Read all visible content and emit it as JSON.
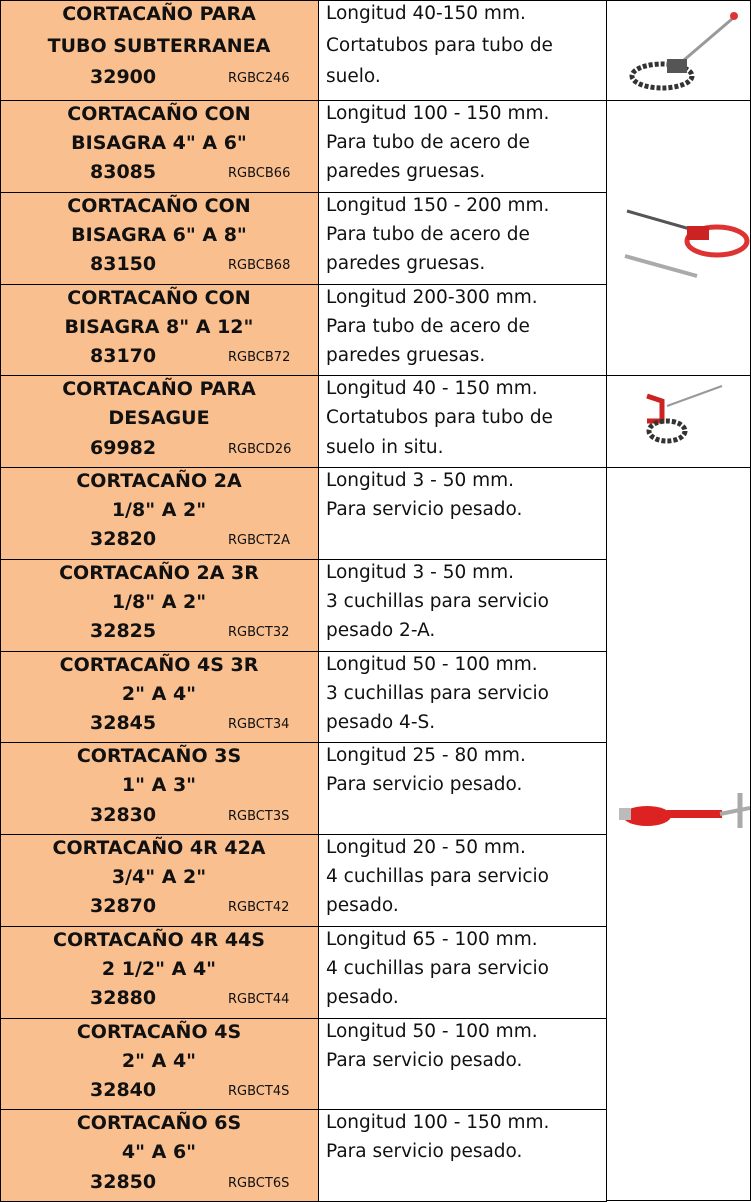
{
  "table": {
    "rows": [
      {
        "title": [
          "CORTACAÑO PARA",
          "TUBO SUBTERRANEA"
        ],
        "code": "32900",
        "ref": "RGBC246",
        "desc": [
          "Longitud 40-150 mm.",
          "Cortatubos para tubo de",
          "suelo."
        ]
      },
      {
        "title": [
          "CORTACAÑO CON",
          "BISAGRA 4\" A 6\""
        ],
        "code": "83085",
        "ref": "RGBCB66",
        "desc": [
          "Longitud 100 - 150 mm.",
          "Para tubo de acero de",
          "paredes gruesas."
        ]
      },
      {
        "title": [
          "CORTACAÑO CON",
          "BISAGRA 6\" A 8\""
        ],
        "code": "83150",
        "ref": "RGBCB68",
        "desc": [
          "Longitud 150 - 200 mm.",
          "Para tubo de acero de",
          "paredes gruesas."
        ]
      },
      {
        "title": [
          "CORTACAÑO CON",
          "BISAGRA 8\" A 12\""
        ],
        "code": "83170",
        "ref": "RGBCB72",
        "desc": [
          "Longitud 200-300 mm.",
          "Para tubo de acero de",
          "paredes gruesas."
        ]
      },
      {
        "title": [
          "CORTACAÑO PARA",
          "DESAGUE"
        ],
        "code": "69982",
        "ref": "RGBCD26",
        "desc": [
          "Longitud 40 - 150 mm.",
          "Cortatubos para tubo de",
          "suelo in situ."
        ]
      },
      {
        "title": [
          "CORTACAÑO 2A",
          "1/8\" A  2\""
        ],
        "code": "32820",
        "ref": "RGBCT2A",
        "desc": [
          "Longitud 3 - 50 mm.",
          "Para servicio pesado."
        ]
      },
      {
        "title": [
          "CORTACAÑO 2A 3R",
          "1/8\" A 2\""
        ],
        "code": "32825",
        "ref": "RGBCT32",
        "desc": [
          "Longitud 3 - 50 mm.",
          "3 cuchillas para servicio",
          "pesado 2-A."
        ]
      },
      {
        "title": [
          "CORTACAÑO 4S 3R",
          "2\" A 4\""
        ],
        "code": "32845",
        "ref": "RGBCT34",
        "desc": [
          "Longitud 50 - 100 mm.",
          "3 cuchillas para servicio",
          "pesado 4-S."
        ]
      },
      {
        "title": [
          "CORTACAÑO 3S",
          "1\" A 3\""
        ],
        "code": "32830",
        "ref": "RGBCT3S",
        "desc": [
          "Longitud 25 - 80 mm.",
          "Para servicio pesado."
        ]
      },
      {
        "title": [
          "CORTACAÑO 4R 42A",
          "3/4\" A 2\""
        ],
        "code": "32870",
        "ref": "RGBCT42",
        "desc": [
          "Longitud 20 - 50 mm.",
          "4 cuchillas para servicio",
          "pesado."
        ]
      },
      {
        "title": [
          "CORTACAÑO 4R 44S",
          "2 1/2\" A 4\""
        ],
        "code": "32880",
        "ref": "RGBCT44",
        "desc": [
          "Longitud 65 - 100 mm.",
          "4 cuchillas para servicio",
          "pesado."
        ]
      },
      {
        "title": [
          "CORTACAÑO 4S",
          "2\" A 4\""
        ],
        "code": "32840",
        "ref": "RGBCT4S",
        "desc": [
          "Longitud 50 - 100 mm.",
          "Para servicio pesado."
        ]
      },
      {
        "title": [
          "CORTACAÑO 6S",
          "4\" A 6\""
        ],
        "code": "32850",
        "ref": "RGBCT6S",
        "desc": [
          "Longitud 100 - 150 mm.",
          "Para servicio pesado."
        ]
      }
    ]
  }
}
